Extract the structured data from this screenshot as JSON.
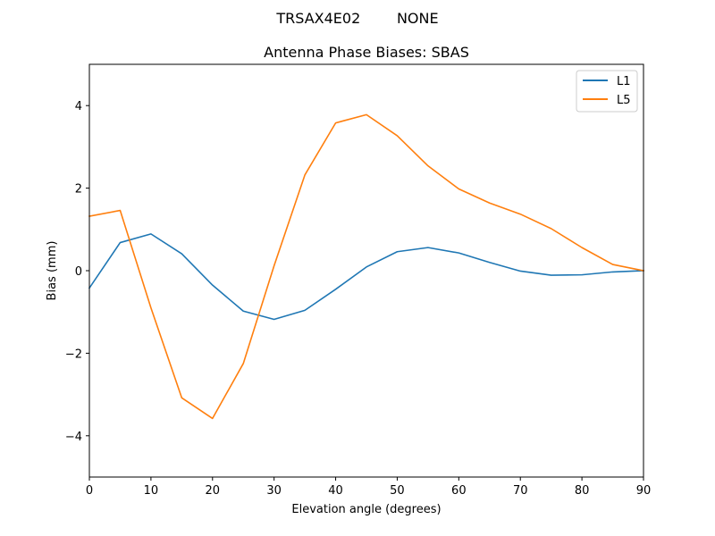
{
  "chart_data": {
    "type": "line",
    "suptitle": "TRSAX4E02        NONE",
    "title": "Antenna Phase Biases: SBAS",
    "xlabel": "Elevation angle (degrees)",
    "ylabel": "Bias (mm)",
    "xlim": [
      0,
      90
    ],
    "ylim": [
      -5,
      5
    ],
    "xticks": [
      0,
      10,
      20,
      30,
      40,
      50,
      60,
      70,
      80,
      90
    ],
    "yticks": [
      -4,
      -2,
      0,
      2,
      4
    ],
    "xtick_labels": [
      "0",
      "10",
      "20",
      "30",
      "40",
      "50",
      "60",
      "70",
      "80",
      "90"
    ],
    "ytick_labels": [
      "−4",
      "−2",
      "0",
      "2",
      "4"
    ],
    "grid": false,
    "legend_position": "top-right",
    "x": [
      0,
      5,
      10,
      15,
      20,
      25,
      30,
      35,
      40,
      45,
      50,
      55,
      60,
      65,
      70,
      75,
      80,
      85,
      90
    ],
    "series": [
      {
        "name": "L1",
        "color": "#1f77b4",
        "values": [
          -0.42,
          0.68,
          0.89,
          0.41,
          -0.35,
          -0.98,
          -1.18,
          -0.96,
          -0.45,
          0.09,
          0.46,
          0.56,
          0.43,
          0.2,
          -0.01,
          -0.11,
          -0.1,
          -0.03,
          0.0
        ]
      },
      {
        "name": "L5",
        "color": "#ff7f0e",
        "values": [
          1.32,
          1.46,
          -0.9,
          -3.08,
          -3.58,
          -2.25,
          0.12,
          2.32,
          3.58,
          3.78,
          3.27,
          2.54,
          1.98,
          1.64,
          1.37,
          1.02,
          0.56,
          0.15,
          0.0
        ]
      }
    ]
  }
}
